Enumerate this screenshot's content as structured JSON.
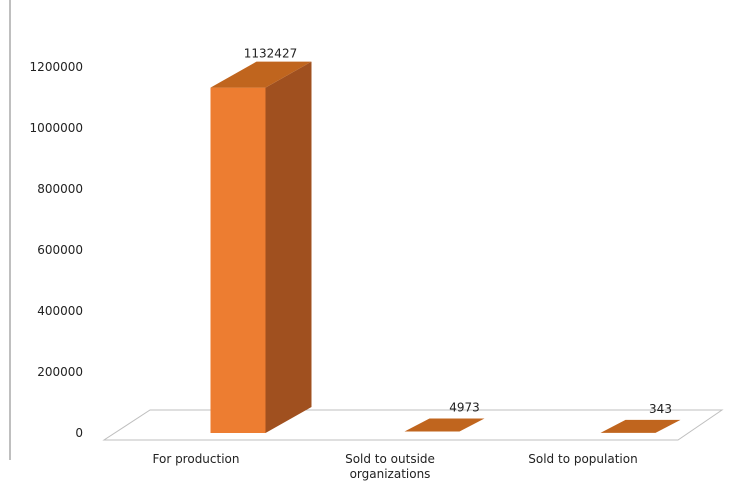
{
  "chart_data": {
    "type": "bar",
    "categories": [
      "For production",
      "Sold to outside organizations",
      "Sold to population"
    ],
    "category_lines": [
      [
        "For production"
      ],
      [
        "Sold to outside",
        "organizations"
      ],
      [
        "Sold to population"
      ]
    ],
    "values": [
      1132427,
      4973,
      343
    ],
    "data_labels": [
      "1132427",
      "4973",
      "343"
    ],
    "ylim": [
      0,
      1200000
    ],
    "yticks": [
      0,
      200000,
      400000,
      600000,
      800000,
      1000000,
      1200000
    ],
    "ytick_labels": [
      "0",
      "200000",
      "400000",
      "600000",
      "800000",
      "1000000",
      "1200000"
    ],
    "style": "3d-column",
    "grid": false,
    "colors": {
      "front": "#ED7D31",
      "side": "#A0501F",
      "top": "#C0651E"
    }
  }
}
